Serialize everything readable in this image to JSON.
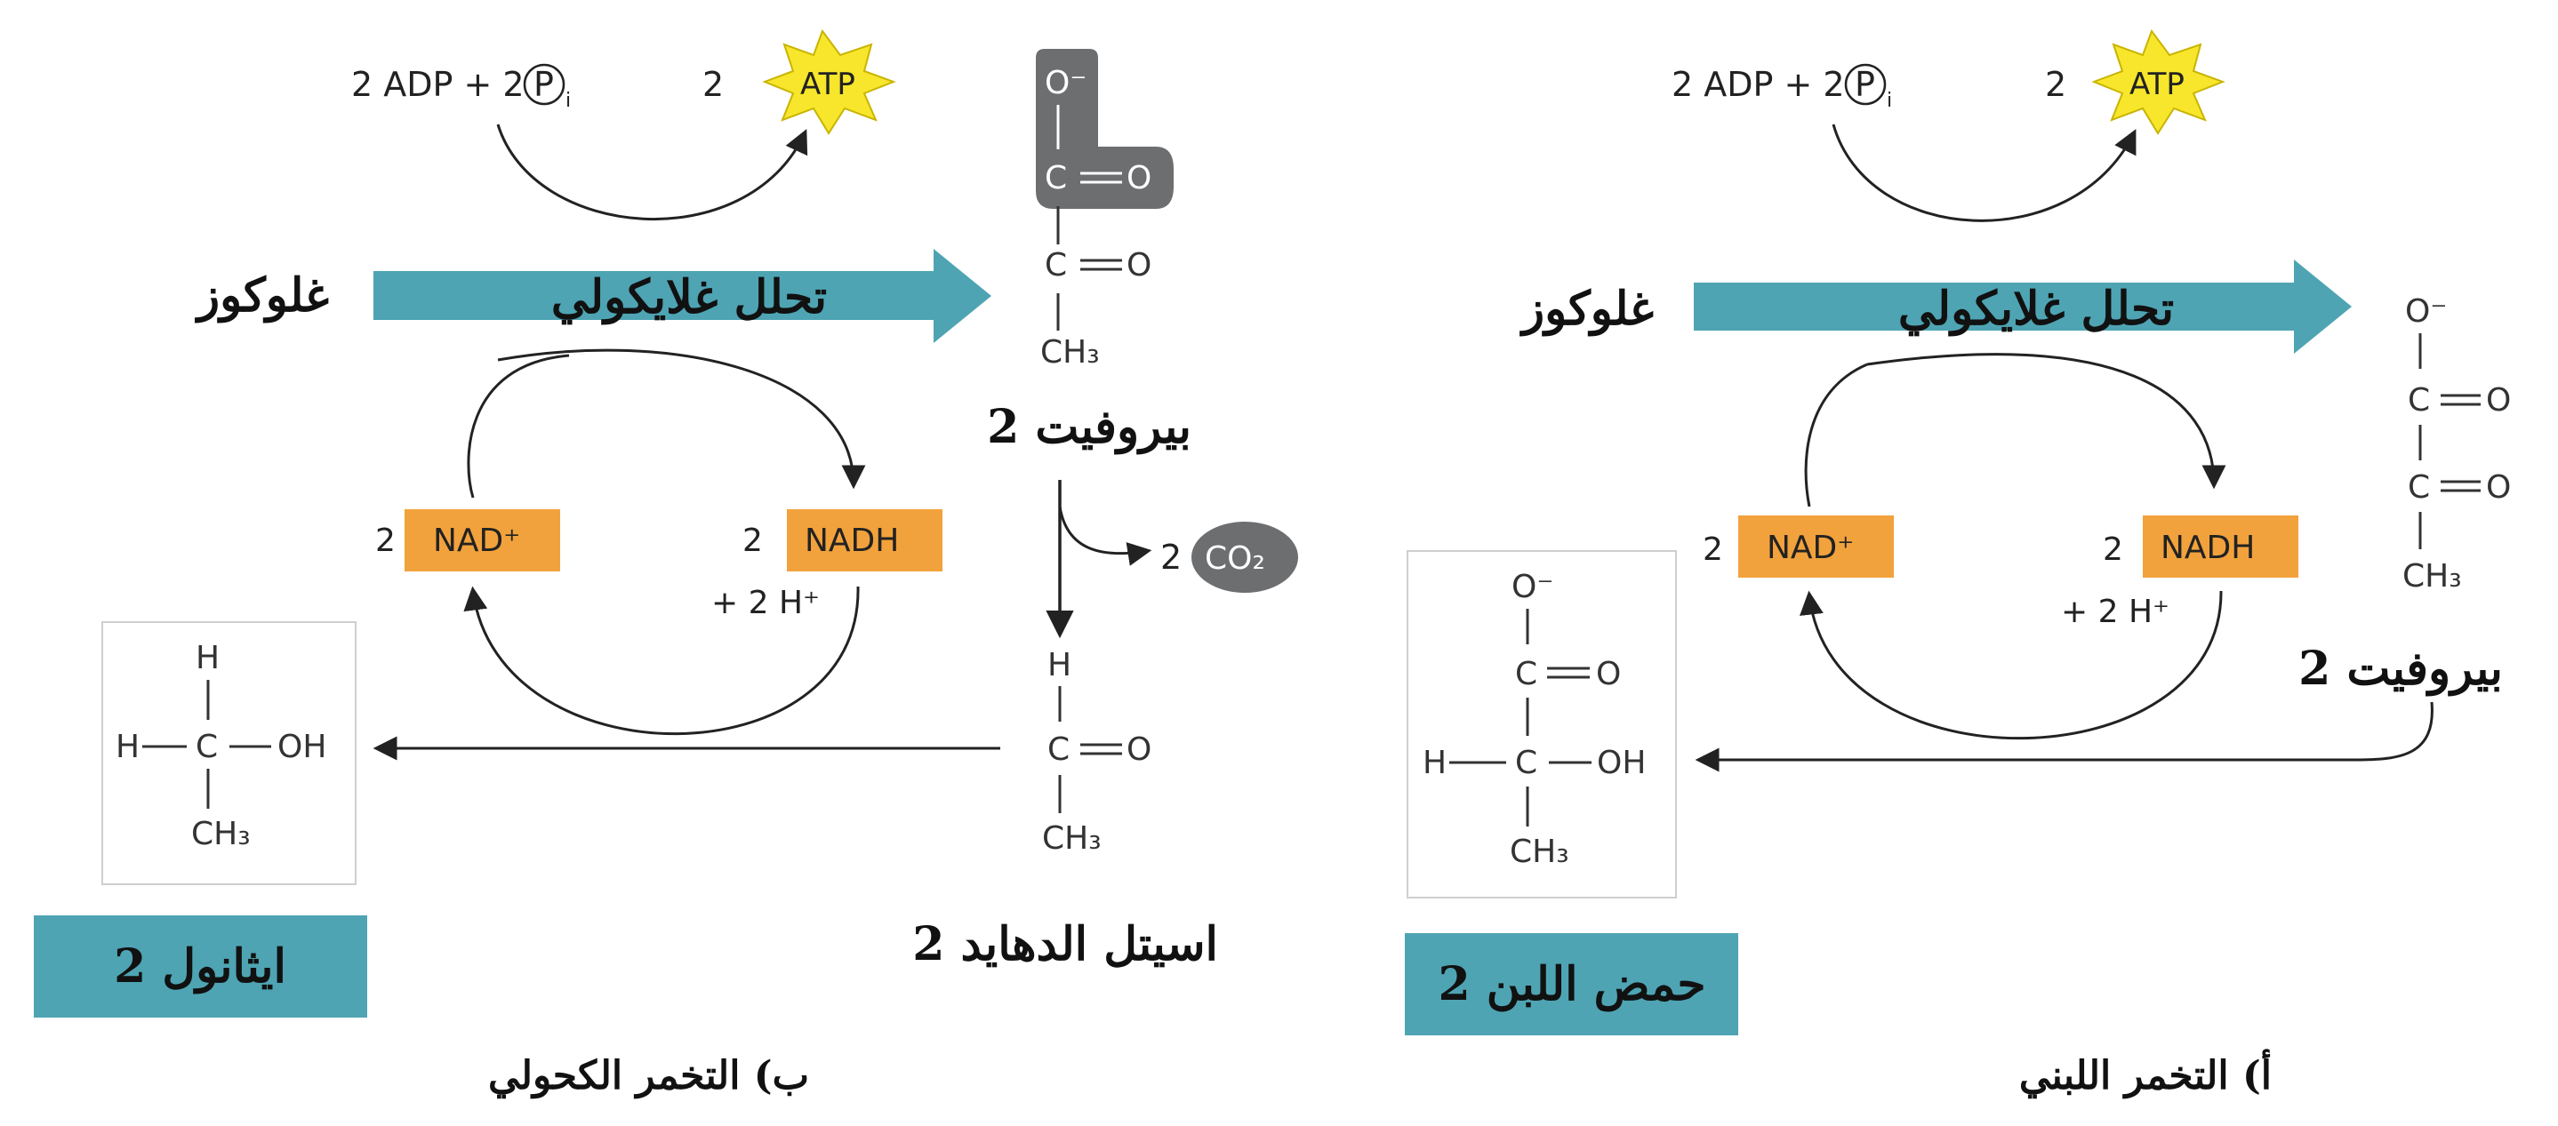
{
  "right_panel": {
    "caption": "أ) التخمر اللبني",
    "adp_label": "2 ADP + 2",
    "pi_symbol": "P",
    "pi_subscript": "i",
    "atp_coef": "2",
    "atp_label": "ATP",
    "glucose": "غلوكوز",
    "arrow_label": "تحلل غلايكولي",
    "pyruvate": "2 بيروفيت",
    "nad_coef": "2",
    "nad_label": "NAD⁺",
    "nadh_coef": "2",
    "nadh_label": "NADH",
    "h_plus": "+ 2 H⁺",
    "product": "2 حمض اللبن"
  },
  "left_panel": {
    "caption": "ب) التخمر الكحولي",
    "adp_label": "2 ADP + 2",
    "pi_symbol": "P",
    "pi_subscript": "i",
    "atp_coef": "2",
    "atp_label": "ATP",
    "glucose": "غلوكوز",
    "arrow_label": "تحلل غلايكولي",
    "pyruvate": "2 بيروفيت",
    "co2_coef": "2",
    "co2_label": "CO₂",
    "acetaldehyde": "2 اسيتل الدهايد",
    "nad_coef": "2",
    "nad_label": "NAD⁺",
    "nadh_coef": "2",
    "nadh_label": "NADH",
    "h_plus": "+ 2 H⁺",
    "product": "2 ايثانول"
  },
  "structures": {
    "o_minus": "O⁻",
    "o": "O",
    "c": "C",
    "h": "H",
    "oh": "OH",
    "ch3": "CH₃",
    "eq_o": "═O"
  },
  "colors": {
    "teal_arrow": "#4ea4b3",
    "orange_box": "#f2a23c",
    "atp_star": "#f7e62b",
    "gray_blob": "#6d6e70"
  }
}
